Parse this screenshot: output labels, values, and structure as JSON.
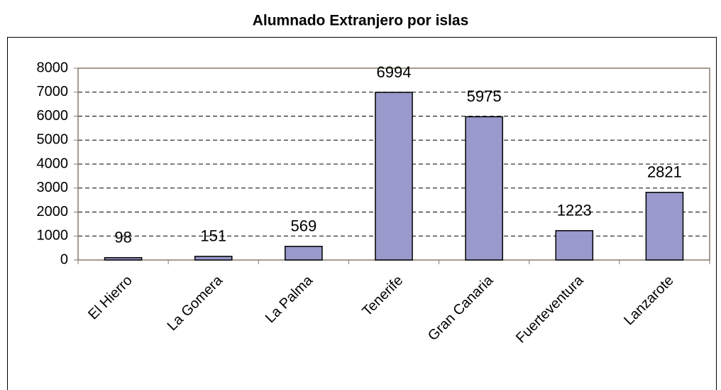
{
  "chart_data": {
    "type": "bar",
    "title": "Alumnado Extranjero por islas",
    "categories": [
      "El Hierro",
      "La Gomera",
      "La Palma",
      "Tenerife",
      "Gran Canaria",
      "Fuerteventura",
      "Lanzarote"
    ],
    "values": [
      98,
      151,
      569,
      6994,
      5975,
      1223,
      2821
    ],
    "color": "#9999cc",
    "ylim": [
      0,
      8000
    ],
    "yticks": [
      0,
      1000,
      2000,
      3000,
      4000,
      5000,
      6000,
      7000,
      8000
    ],
    "grid": true
  }
}
